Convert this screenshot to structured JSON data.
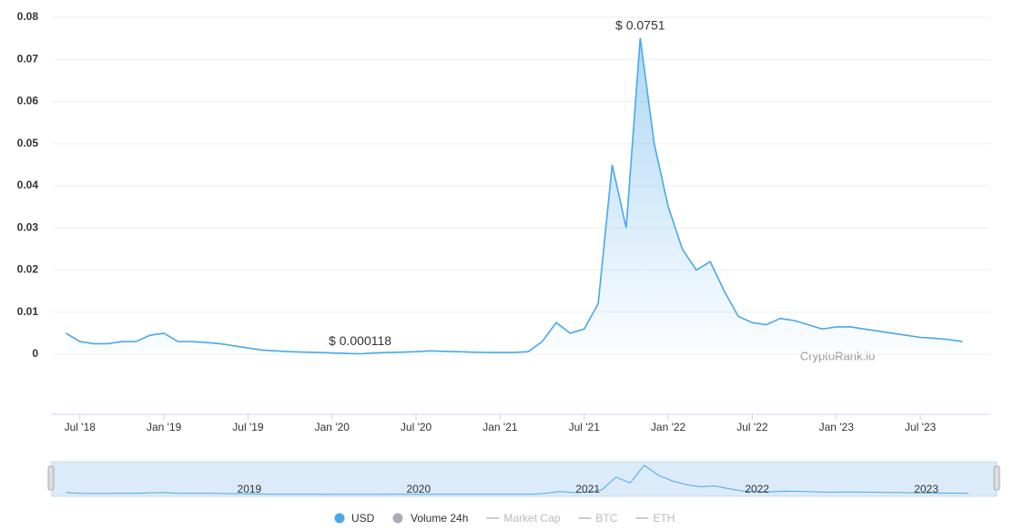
{
  "chart_data": {
    "type": "line",
    "watermark": "CryptoRank.io",
    "x": [
      "2018-06",
      "2018-07",
      "2018-08",
      "2018-09",
      "2018-10",
      "2018-11",
      "2018-12",
      "2019-01",
      "2019-02",
      "2019-03",
      "2019-04",
      "2019-05",
      "2019-06",
      "2019-07",
      "2019-08",
      "2019-09",
      "2019-10",
      "2019-11",
      "2019-12",
      "2020-01",
      "2020-02",
      "2020-03",
      "2020-04",
      "2020-05",
      "2020-06",
      "2020-07",
      "2020-08",
      "2020-09",
      "2020-10",
      "2020-11",
      "2020-12",
      "2021-01",
      "2021-02",
      "2021-03",
      "2021-04",
      "2021-05",
      "2021-06",
      "2021-07",
      "2021-08",
      "2021-09",
      "2021-10",
      "2021-11",
      "2021-12",
      "2022-01",
      "2022-02",
      "2022-03",
      "2022-04",
      "2022-05",
      "2022-06",
      "2022-07",
      "2022-08",
      "2022-09",
      "2022-10",
      "2022-11",
      "2022-12",
      "2023-01",
      "2023-02",
      "2023-03",
      "2023-04",
      "2023-05",
      "2023-06",
      "2023-07",
      "2023-08",
      "2023-09",
      "2023-10"
    ],
    "series": [
      {
        "name": "USD",
        "color": "#4aa8e8",
        "values": [
          0.005,
          0.003,
          0.0025,
          0.0025,
          0.003,
          0.003,
          0.0045,
          0.005,
          0.003,
          0.003,
          0.0028,
          0.0025,
          0.002,
          0.0015,
          0.001,
          0.0008,
          0.0006,
          0.0005,
          0.0004,
          0.0003,
          0.0002,
          0.000118,
          0.0003,
          0.0004,
          0.0005,
          0.0006,
          0.0008,
          0.0007,
          0.0006,
          0.0005,
          0.0004,
          0.0004,
          0.0004,
          0.0006,
          0.003,
          0.0075,
          0.005,
          0.006,
          0.012,
          0.045,
          0.03,
          0.0751,
          0.05,
          0.035,
          0.025,
          0.02,
          0.022,
          0.015,
          0.009,
          0.0075,
          0.007,
          0.0085,
          0.008,
          0.007,
          0.006,
          0.0065,
          0.0065,
          0.006,
          0.0055,
          0.005,
          0.0045,
          0.004,
          0.0038,
          0.0035,
          0.003
        ]
      }
    ],
    "annotations": [
      {
        "text": "$ 0.0751",
        "x": "2021-11",
        "y": 0.0751
      },
      {
        "text": "$ 0.000118",
        "x": "2020-03",
        "y": 0.000118
      }
    ],
    "xlim": [
      "2018-05",
      "2023-12"
    ],
    "xticks": [
      {
        "value": "2018-07",
        "label": "Jul '18"
      },
      {
        "value": "2019-01",
        "label": "Jan '19"
      },
      {
        "value": "2019-07",
        "label": "Jul '19"
      },
      {
        "value": "2020-01",
        "label": "Jan '20"
      },
      {
        "value": "2020-07",
        "label": "Jul '20"
      },
      {
        "value": "2021-01",
        "label": "Jan '21"
      },
      {
        "value": "2021-07",
        "label": "Jul '21"
      },
      {
        "value": "2022-01",
        "label": "Jan '22"
      },
      {
        "value": "2022-07",
        "label": "Jul '22"
      },
      {
        "value": "2023-01",
        "label": "Jan '23"
      },
      {
        "value": "2023-07",
        "label": "Jul '23"
      }
    ],
    "ylim": [
      0,
      0.08
    ],
    "yticks": [
      0,
      0.01,
      0.02,
      0.03,
      0.04,
      0.05,
      0.06,
      0.07,
      0.08
    ],
    "grid": true,
    "navigator_labels": [
      {
        "value": "2019-07",
        "label": "2019"
      },
      {
        "value": "2020-07",
        "label": "2020"
      },
      {
        "value": "2021-07",
        "label": "2021"
      },
      {
        "value": "2022-07",
        "label": "2022"
      },
      {
        "value": "2023-07",
        "label": "2023"
      }
    ],
    "other_legend": [
      "Volume 24h",
      "Market Cap",
      "BTC",
      "ETH"
    ]
  }
}
